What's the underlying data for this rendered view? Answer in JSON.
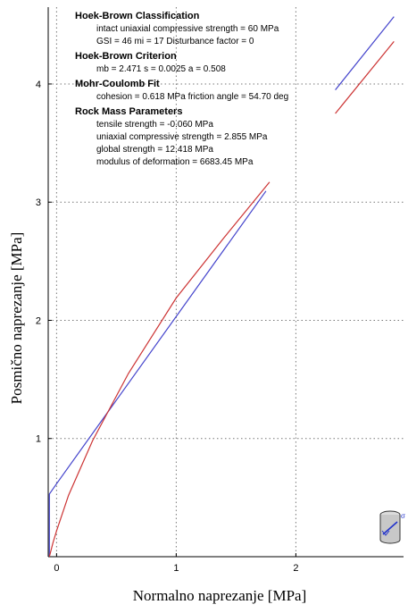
{
  "chart_data": {
    "type": "line",
    "xlabel": "Normalno naprezanje [MPa]",
    "ylabel": "Posmično naprezanje [MPa]",
    "xlim": [
      -0.07,
      2.9
    ],
    "ylim": [
      0,
      4.65
    ],
    "x_ticks": [
      {
        "value": 0,
        "label": "0"
      },
      {
        "value": 1,
        "label": "1"
      },
      {
        "value": 2,
        "label": "2"
      }
    ],
    "y_ticks": [
      {
        "value": 1,
        "label": "1"
      },
      {
        "value": 2,
        "label": "2"
      },
      {
        "value": 3,
        "label": "3"
      },
      {
        "value": 4,
        "label": "4"
      }
    ],
    "grid": true,
    "series": [
      {
        "color": "#4444cc",
        "x": [
          -0.06,
          -0.06,
          0.0,
          1.75
        ],
        "y": [
          0.0,
          0.53,
          0.618,
          3.094
        ]
      },
      {
        "color": "#cc3333",
        "x": [
          -0.06,
          -0.03,
          0.0,
          0.1,
          0.3,
          0.6,
          1.0,
          1.4,
          1.78
        ],
        "y": [
          0.0,
          0.12,
          0.22,
          0.52,
          0.98,
          1.55,
          2.19,
          2.7,
          3.17
        ]
      }
    ],
    "inset_series": [
      {
        "color": "#4444cc",
        "x": [
          2.33,
          2.82
        ],
        "y": [
          3.95,
          4.57
        ]
      },
      {
        "color": "#cc3333",
        "x": [
          2.33,
          2.82
        ],
        "y": [
          3.75,
          4.36
        ]
      }
    ],
    "annotations": [
      {
        "heading": "Hoek-Brown Classification",
        "lines": [
          "intact uniaxial compressive strength = 60 MPa",
          "GSI = 46    mi = 17    Disturbance factor = 0"
        ]
      },
      {
        "heading": "Hoek-Brown Criterion",
        "lines": [
          "mb = 2.471    s = 0.0025    a = 0.508"
        ]
      },
      {
        "heading": "Mohr-Coulomb Fit",
        "lines": [
          "cohesion = 0.618 MPa    friction angle = 54.70 deg"
        ]
      },
      {
        "heading": "Rock Mass Parameters",
        "lines": [
          "tensile strength = -0.060 MPa",
          "uniaxial compressive strength = 2.855 MPa",
          "global strength = 12.418 MPa",
          "modulus of deformation = 6683.45 MPa"
        ]
      }
    ],
    "icon": "rock-sample-cylinder-icon",
    "icon_label": "σ"
  }
}
